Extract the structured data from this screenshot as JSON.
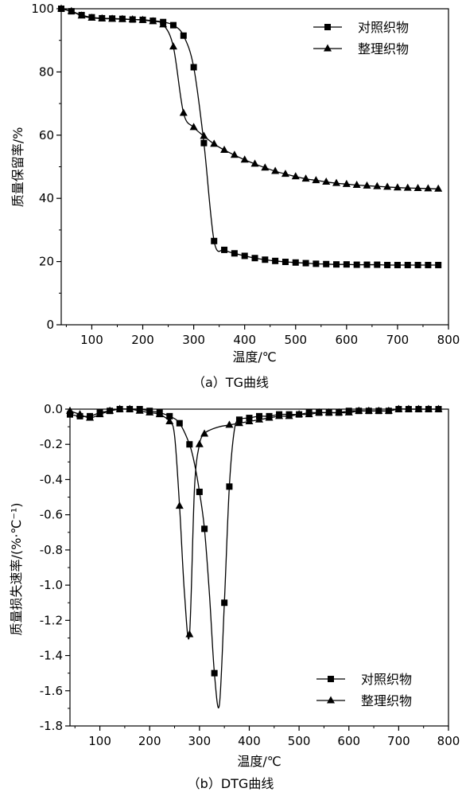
{
  "chart_data": [
    {
      "type": "line",
      "caption": "（a）TG曲线",
      "xlabel": "温度/℃",
      "ylabel": "质量保留率/%",
      "xlim": [
        40,
        800
      ],
      "ylim": [
        0,
        100
      ],
      "xticks": [
        100,
        200,
        300,
        400,
        500,
        600,
        700,
        800
      ],
      "yticks": [
        0,
        20,
        40,
        60,
        80,
        100
      ],
      "ytick_labels": [
        "0",
        "20",
        "40",
        "60",
        "80",
        "100"
      ],
      "grid": false,
      "legend_position": "top-right",
      "series": [
        {
          "name": "对照织物",
          "marker": "square",
          "x": [
            40,
            60,
            80,
            100,
            120,
            140,
            160,
            180,
            200,
            220,
            240,
            260,
            280,
            300,
            320,
            340,
            360,
            380,
            400,
            420,
            440,
            460,
            480,
            500,
            520,
            540,
            560,
            580,
            600,
            620,
            640,
            660,
            680,
            700,
            720,
            740,
            760,
            780
          ],
          "y": [
            100,
            99.2,
            98,
            97.3,
            97,
            96.9,
            96.8,
            96.6,
            96.5,
            96.2,
            95.8,
            94.8,
            91.5,
            81.5,
            57.5,
            26.5,
            23.7,
            22.6,
            21.8,
            21.1,
            20.6,
            20.2,
            19.9,
            19.7,
            19.5,
            19.3,
            19.2,
            19.1,
            19.1,
            19.0,
            19.0,
            19.0,
            18.9,
            18.9,
            18.9,
            18.9,
            18.9,
            18.9
          ]
        },
        {
          "name": "整理织物",
          "marker": "triangle",
          "x": [
            40,
            60,
            80,
            100,
            120,
            140,
            160,
            180,
            200,
            220,
            240,
            260,
            280,
            300,
            320,
            340,
            360,
            380,
            400,
            420,
            440,
            460,
            480,
            500,
            520,
            540,
            560,
            580,
            600,
            620,
            640,
            660,
            680,
            700,
            720,
            740,
            760,
            780
          ],
          "y": [
            100,
            99.2,
            97.8,
            97.1,
            96.9,
            96.8,
            96.7,
            96.6,
            96.4,
            96,
            95,
            88,
            67,
            62.5,
            59.7,
            57.2,
            55.3,
            53.7,
            52.2,
            50.9,
            49.7,
            48.6,
            47.7,
            46.9,
            46.2,
            45.7,
            45.2,
            44.8,
            44.5,
            44.2,
            44.0,
            43.8,
            43.6,
            43.4,
            43.3,
            43.2,
            43.1,
            43.0
          ]
        }
      ]
    },
    {
      "type": "line",
      "caption": "（b）DTG曲线",
      "xlabel": "温度/℃",
      "ylabel": "质量损失速率/(%·℃⁻¹)",
      "xlim": [
        40,
        800
      ],
      "ylim": [
        -1.8,
        0.0
      ],
      "xticks": [
        100,
        200,
        300,
        400,
        500,
        600,
        700,
        800
      ],
      "yticks": [
        0,
        -0.2,
        -0.4,
        -0.6,
        -0.8,
        -1.0,
        -1.2,
        -1.4,
        -1.6,
        -1.8
      ],
      "ytick_labels": [
        "0.0",
        "-0.2",
        "-0.4",
        "-0.6",
        "-0.8",
        "-1.0",
        "-1.2",
        "-1.4",
        "-1.6",
        "-1.8"
      ],
      "grid": false,
      "legend_position": "bottom-right",
      "series": [
        {
          "name": "对照织物",
          "marker": "square",
          "x": [
            40,
            60,
            80,
            100,
            120,
            140,
            160,
            180,
            200,
            220,
            240,
            260,
            280,
            290,
            300,
            310,
            320,
            330,
            340,
            350,
            360,
            370,
            380,
            400,
            420,
            440,
            460,
            480,
            500,
            520,
            540,
            560,
            580,
            600,
            620,
            640,
            660,
            680,
            700,
            720,
            740,
            760,
            780
          ],
          "y": [
            -0.03,
            -0.04,
            -0.04,
            -0.02,
            -0.01,
            0,
            0,
            0,
            -0.01,
            -0.02,
            -0.04,
            -0.08,
            -0.2,
            -0.31,
            -0.47,
            -0.68,
            -1.05,
            -1.5,
            -1.68,
            -1.1,
            -0.44,
            -0.12,
            -0.06,
            -0.05,
            -0.04,
            -0.04,
            -0.03,
            -0.03,
            -0.03,
            -0.02,
            -0.02,
            -0.02,
            -0.02,
            -0.01,
            -0.01,
            -0.01,
            -0.01,
            -0.01,
            0,
            0,
            0,
            0,
            0
          ]
        },
        {
          "name": "整理织物",
          "marker": "triangle",
          "x": [
            40,
            60,
            80,
            100,
            120,
            140,
            160,
            180,
            200,
            220,
            240,
            250,
            260,
            270,
            280,
            290,
            300,
            310,
            320,
            340,
            360,
            380,
            400,
            420,
            440,
            460,
            480,
            500,
            520,
            540,
            560,
            580,
            600,
            620,
            640,
            660,
            680,
            700,
            720,
            740,
            760,
            780
          ],
          "y": [
            -0.01,
            -0.03,
            -0.05,
            -0.03,
            -0.01,
            0,
            0,
            -0.01,
            -0.02,
            -0.03,
            -0.07,
            -0.15,
            -0.55,
            -1.05,
            -1.28,
            -0.45,
            -0.2,
            -0.14,
            -0.12,
            -0.1,
            -0.09,
            -0.08,
            -0.07,
            -0.06,
            -0.05,
            -0.04,
            -0.04,
            -0.03,
            -0.03,
            -0.02,
            -0.02,
            -0.02,
            -0.02,
            -0.01,
            -0.01,
            -0.01,
            -0.01,
            0,
            0,
            0,
            0,
            0
          ]
        }
      ]
    }
  ]
}
